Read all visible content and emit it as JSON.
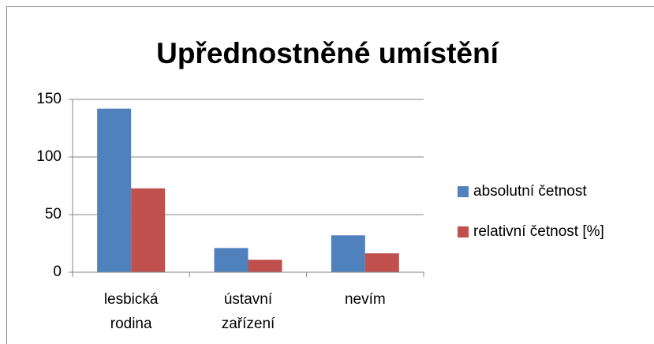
{
  "chart_data": {
    "type": "bar",
    "title": "Upřednostněné umístění",
    "categories": [
      "lesbická rodina",
      "ústavní zařízení",
      "nevím"
    ],
    "series": [
      {
        "name": "absolutní četnost",
        "color": "#4f81bd",
        "values": [
          142,
          21,
          32
        ]
      },
      {
        "name": "relativní četnost [%]",
        "color": "#c0504d",
        "values": [
          72.8,
          10.8,
          16.4
        ]
      }
    ],
    "ylim": [
      0,
      150
    ],
    "yticks": [
      0,
      50,
      100,
      150
    ],
    "grid": true,
    "legend": "right"
  }
}
